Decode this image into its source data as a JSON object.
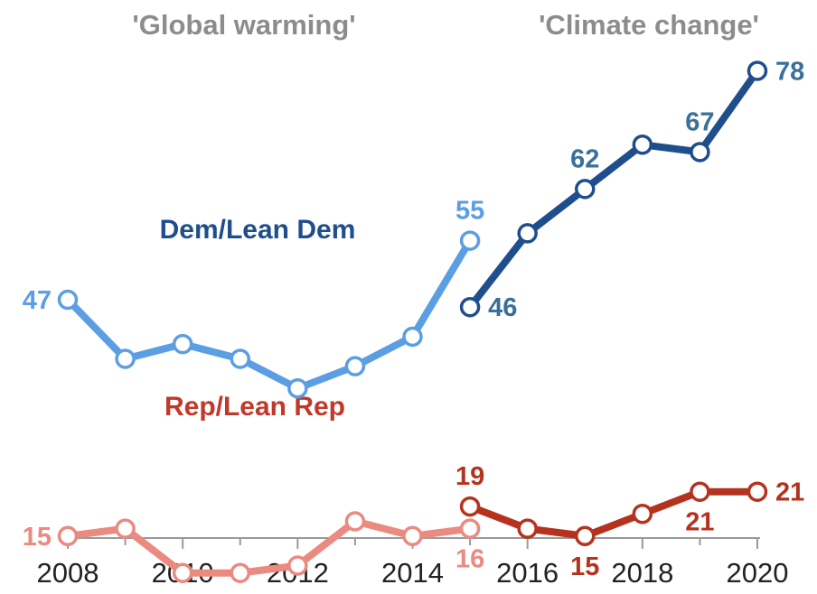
{
  "chart_data": {
    "type": "line",
    "x": [
      2008,
      2009,
      2010,
      2011,
      2012,
      2013,
      2014,
      2015,
      2016,
      2017,
      2018,
      2019,
      2020
    ],
    "xlim": [
      2008,
      2020
    ],
    "x_ticks": [
      2008,
      2010,
      2012,
      2014,
      2016,
      2018,
      2020
    ],
    "x_tick_labels": [
      "2008",
      "2010",
      "2012",
      "2014",
      "2016",
      "2018",
      "2020"
    ],
    "ylim": [
      0,
      90
    ],
    "grid": false,
    "period_labels": [
      "'Global warming'",
      "'Climate change'"
    ],
    "series_labels": {
      "dem": "Dem/Lean Dem",
      "rep": "Rep/Lean Rep"
    },
    "series": [
      {
        "key": "dem-global-warming",
        "color": "#5b9ee3",
        "points": [
          [
            2008,
            47
          ],
          [
            2009,
            39
          ],
          [
            2010,
            41
          ],
          [
            2011,
            39
          ],
          [
            2012,
            35
          ],
          [
            2013,
            38
          ],
          [
            2014,
            42
          ],
          [
            2015,
            55
          ]
        ],
        "labels": [
          {
            "x": 2008,
            "text": "47",
            "pos": "left"
          },
          {
            "x": 2015,
            "text": "55",
            "pos": "above"
          }
        ]
      },
      {
        "key": "dem-climate-change",
        "color": "#1f4e8c",
        "label_color": "#3a6f9a",
        "points": [
          [
            2015,
            46
          ],
          [
            2016,
            56
          ],
          [
            2017,
            62
          ],
          [
            2018,
            68
          ],
          [
            2019,
            67
          ],
          [
            2020,
            78
          ]
        ],
        "labels": [
          {
            "x": 2015,
            "text": "46",
            "pos": "right"
          },
          {
            "x": 2017,
            "text": "62",
            "pos": "above"
          },
          {
            "x": 2019,
            "text": "67",
            "pos": "above"
          },
          {
            "x": 2020,
            "text": "78",
            "pos": "right"
          }
        ]
      },
      {
        "key": "rep-global-warming",
        "color": "#ea8a80",
        "points": [
          [
            2008,
            15
          ],
          [
            2009,
            16
          ],
          [
            2010,
            10
          ],
          [
            2011,
            10
          ],
          [
            2012,
            11
          ],
          [
            2013,
            17
          ],
          [
            2014,
            15
          ],
          [
            2015,
            16
          ]
        ],
        "labels": [
          {
            "x": 2008,
            "text": "15",
            "pos": "left"
          },
          {
            "x": 2015,
            "text": "16",
            "pos": "below"
          }
        ]
      },
      {
        "key": "rep-climate-change",
        "color": "#b5321e",
        "points": [
          [
            2015,
            19
          ],
          [
            2016,
            16
          ],
          [
            2017,
            15
          ],
          [
            2018,
            18
          ],
          [
            2019,
            21
          ],
          [
            2020,
            21
          ]
        ],
        "labels": [
          {
            "x": 2015,
            "text": "19",
            "pos": "above"
          },
          {
            "x": 2017,
            "text": "15",
            "pos": "below"
          },
          {
            "x": 2019,
            "text": "21",
            "pos": "below"
          },
          {
            "x": 2020,
            "text": "21",
            "pos": "right"
          }
        ]
      }
    ]
  }
}
